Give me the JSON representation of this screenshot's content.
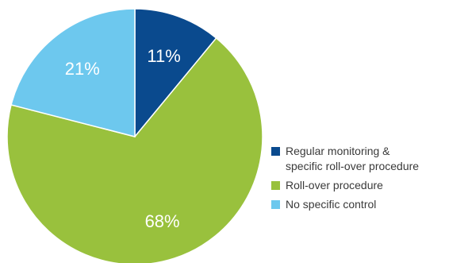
{
  "chart_data": {
    "type": "pie",
    "slices": [
      {
        "label": "Regular monitoring & specific roll-over procedure",
        "value": 11,
        "display": "11%",
        "color": "#0a4a8e"
      },
      {
        "label": "Roll-over procedure",
        "value": 68,
        "display": "68%",
        "color": "#99c13d"
      },
      {
        "label": "No specific control",
        "value": 21,
        "display": "21%",
        "color": "#6dc8ee"
      }
    ],
    "legend": {
      "placement": "right",
      "items": [
        {
          "label_lines": [
            "Regular monitoring &",
            "specific roll-over procedure"
          ],
          "color": "#0a4a8e"
        },
        {
          "label_lines": [
            "Roll-over procedure"
          ],
          "color": "#99c13d"
        },
        {
          "label_lines": [
            "No specific control"
          ],
          "color": "#6dc8ee"
        }
      ]
    }
  }
}
